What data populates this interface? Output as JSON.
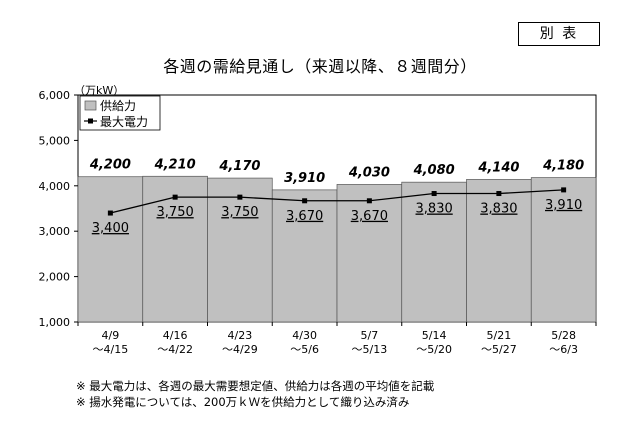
{
  "header": {
    "badge": "別 表",
    "title": "各週の需給見通し（来週以降、８週間分）"
  },
  "chart_data": {
    "type": "bar",
    "title": "各週の需給見通し（来週以降、８週間分）",
    "unit_label": "（万kW）",
    "categories": [
      {
        "line1": "4/9",
        "line2": "～4/15"
      },
      {
        "line1": "4/16",
        "line2": "～4/22"
      },
      {
        "line1": "4/23",
        "line2": "～4/29"
      },
      {
        "line1": "4/30",
        "line2": "～5/6"
      },
      {
        "line1": "5/7",
        "line2": "～5/13"
      },
      {
        "line1": "5/14",
        "line2": "～5/20"
      },
      {
        "line1": "5/21",
        "line2": "～5/27"
      },
      {
        "line1": "5/28",
        "line2": "～6/3"
      }
    ],
    "series": [
      {
        "name": "供給力",
        "type": "bar",
        "values": [
          4200,
          4210,
          4170,
          3910,
          4030,
          4080,
          4140,
          4180
        ],
        "color": "#c0c0c0"
      },
      {
        "name": "最大電力",
        "type": "line",
        "values": [
          3400,
          3750,
          3750,
          3670,
          3670,
          3830,
          3830,
          3910
        ],
        "color": "#000000"
      }
    ],
    "value_labels": {
      "supply": [
        "4,200",
        "4,210",
        "4,170",
        "3,910",
        "4,030",
        "4,080",
        "4,140",
        "4,180"
      ],
      "demand": [
        "3,400",
        "3,750",
        "3,750",
        "3,670",
        "3,670",
        "3,830",
        "3,830",
        "3,910"
      ]
    },
    "ylim": [
      1000,
      6000
    ],
    "yticks": [
      1000,
      2000,
      3000,
      4000,
      5000,
      6000
    ],
    "ytick_labels": [
      "1,000",
      "2,000",
      "3,000",
      "4,000",
      "5,000",
      "6,000"
    ],
    "legend_position": "top-left",
    "grid": false
  },
  "notes": [
    "※ 最大電力は、各週の最大需要想定値、供給力は各週の平均値を記載",
    "※ 揚水発電については、200万ｋＷを供給力として織り込み済み"
  ]
}
